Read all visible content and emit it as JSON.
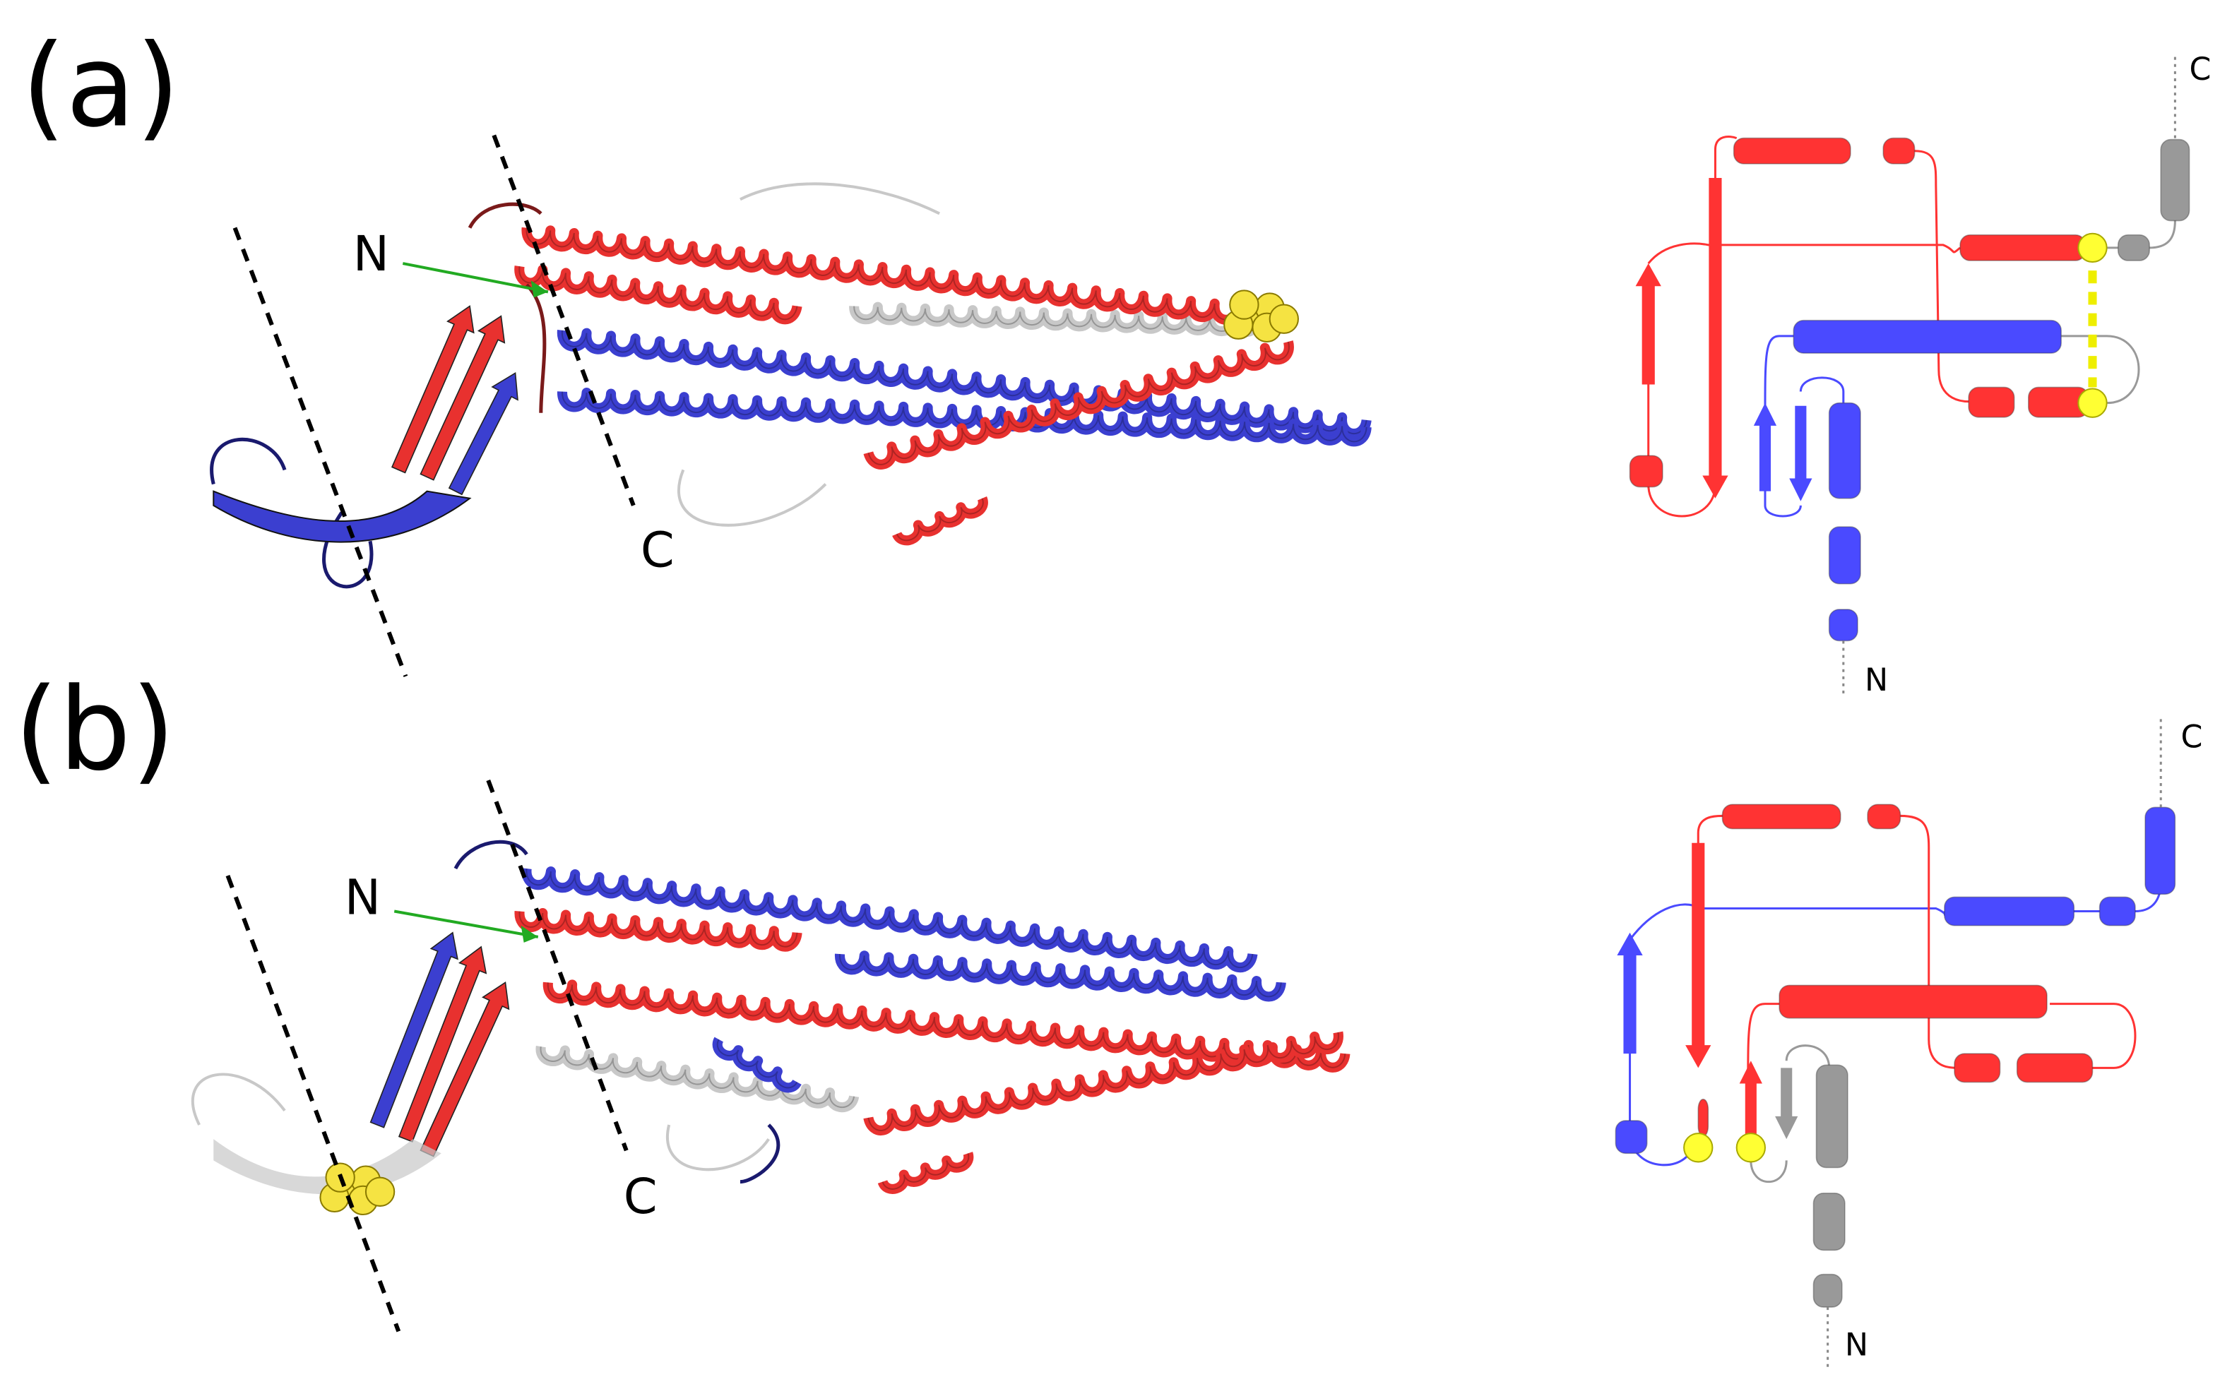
{
  "panels": [
    {
      "label": "(a)",
      "structure": {
        "n_label": "N",
        "c_label": "C"
      },
      "topology": {
        "n_label": "N",
        "c_label": "C"
      }
    },
    {
      "label": "(b)",
      "structure": {
        "n_label": "N",
        "c_label": "C"
      },
      "topology": {
        "n_label": "N",
        "c_label": "C"
      }
    }
  ]
}
